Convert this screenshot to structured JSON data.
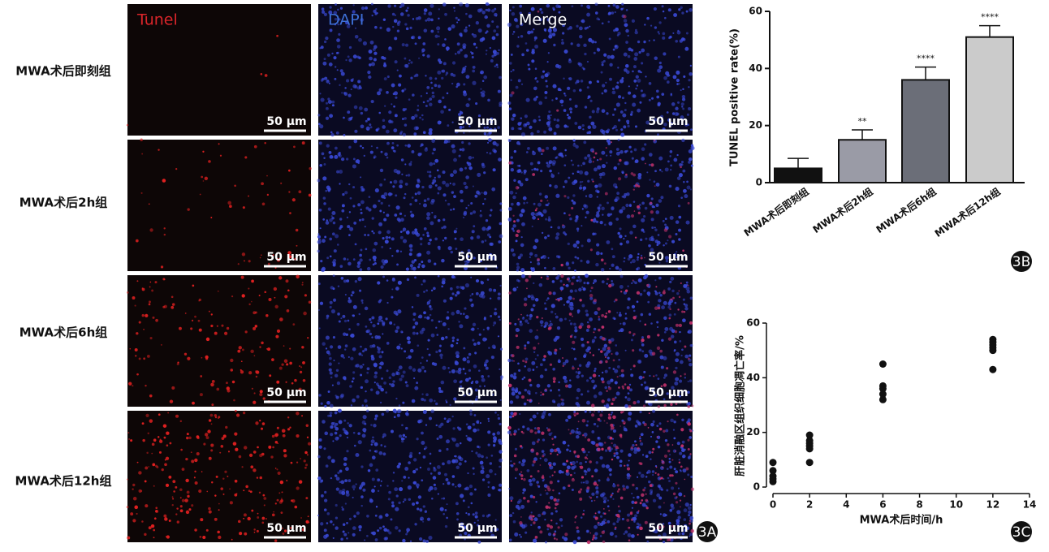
{
  "panel_labels": [
    "3A",
    "3B",
    "3C"
  ],
  "panel_a": {
    "columns": [
      "Tunel",
      "DAPI",
      "Merge"
    ],
    "rows": [
      "MWA术后即刻组",
      "MWA术后2h组",
      "MWA术后6h组",
      "MWA术后12h组"
    ],
    "scale_bar": "50 μm"
  },
  "chart_data": [
    {
      "type": "bar",
      "ylabel": "TUNEL positive rate(%)",
      "categories": [
        "MWA术后即刻组",
        "MWA术后2h组",
        "MWA术后6h组",
        "MWA术后12h组"
      ],
      "values": [
        5,
        15,
        36,
        51
      ],
      "errors": [
        3.5,
        3.5,
        4.5,
        4
      ],
      "annotations": [
        null,
        "**",
        "****",
        "****"
      ],
      "colors": [
        "#111111",
        "#9a9ba6",
        "#6b6e78",
        "#cbcbcb"
      ],
      "ylim": [
        0,
        60
      ],
      "yticks": [
        0,
        20,
        40,
        60
      ]
    },
    {
      "type": "scatter",
      "xlabel": "MWA术后时间/h",
      "ylabel": "肝脏消融区组织细胞凋亡率/%",
      "x": [
        0,
        0,
        0,
        0,
        0,
        2,
        2,
        2,
        2,
        2,
        2,
        6,
        6,
        6,
        6,
        6,
        12,
        12,
        12,
        12,
        12,
        12
      ],
      "y": [
        9,
        6,
        4,
        3,
        2,
        19,
        17,
        16,
        15,
        14,
        9,
        45,
        37,
        36,
        34,
        32,
        54,
        53,
        52,
        51,
        50,
        43
      ],
      "color": "#111111",
      "xlim": [
        0,
        14
      ],
      "xticks": [
        0,
        2,
        4,
        6,
        8,
        10,
        12,
        14
      ],
      "ylim": [
        0,
        60
      ],
      "yticks": [
        0,
        20,
        40,
        60
      ]
    }
  ]
}
